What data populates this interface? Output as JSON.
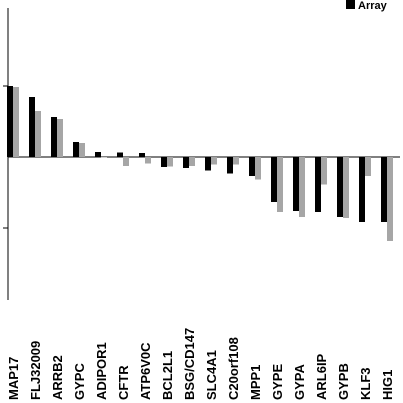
{
  "chart_data": {
    "type": "bar",
    "title": "",
    "xlabel": "",
    "ylabel": "",
    "ylim": [
      -4.2,
      2.2
    ],
    "grid": false,
    "legend_position": "top-right",
    "categories": [
      "MAP17",
      "FLJ32009",
      "ARRB2",
      "GYPC",
      "ADIPOR1",
      "CFTR",
      "ATP6V0C",
      "BCL2L1",
      "BSG/CD147",
      "SLC4A1",
      "C20orf108",
      "MPP1",
      "GYPE",
      "GYPA",
      "ARL6IP",
      "GYPB",
      "KLF3",
      "HIG1"
    ],
    "series": [
      {
        "name": "",
        "color": "#000000",
        "values": [
          1.42,
          1.2,
          0.8,
          0.3,
          0.1,
          0.09,
          0.08,
          -0.2,
          -0.22,
          -0.27,
          -0.33,
          -0.38,
          -0.9,
          -1.08,
          -1.1,
          -1.2,
          -1.3,
          -1.3
        ]
      },
      {
        "name": "Array",
        "color": "#a6a6a6",
        "values": [
          1.4,
          0.92,
          0.76,
          0.28,
          0.0,
          -0.18,
          -0.13,
          -0.19,
          -0.18,
          -0.15,
          -0.15,
          -0.45,
          -1.1,
          -1.2,
          -0.55,
          -1.22,
          -0.38,
          -1.68
        ]
      }
    ]
  }
}
